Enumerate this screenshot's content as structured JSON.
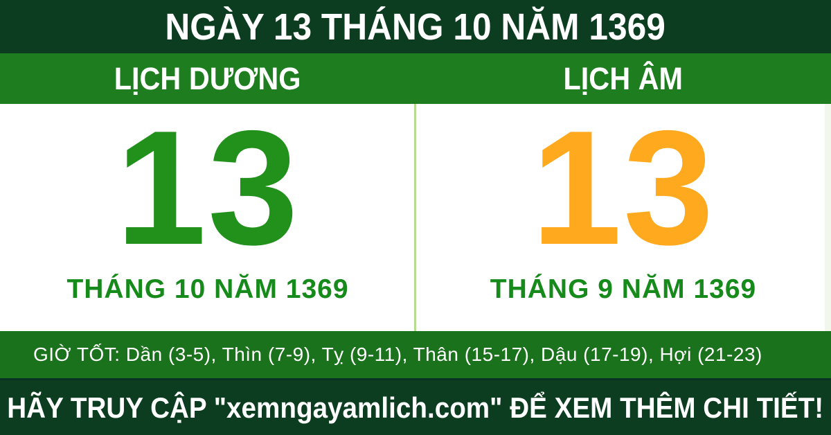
{
  "header": {
    "title": "NGÀY 13 THÁNG 10 NĂM 1369"
  },
  "calendars": {
    "solar": {
      "label": "LỊCH DƯƠNG",
      "day": "13",
      "month_year": "THÁNG 10 NĂM 1369"
    },
    "lunar": {
      "label": "LỊCH ÂM",
      "day": "13",
      "month_year": "THÁNG 9 NĂM 1369"
    }
  },
  "good_hours": {
    "text": "GIỜ TỐT: Dần (3-5), Thìn (7-9), Tỵ (9-11), Thân (15-17), Dậu (17-19), Hợi (21-23)"
  },
  "footer": {
    "text": "HÃY TRUY CẬP \"xemngayamlich.com\" ĐỂ XEM THÊM CHI TIẾT!",
    "website": "xemngayamlich.com"
  },
  "colors": {
    "dark_green_banner": "#0d3d20",
    "header_green": "#1e7d1f",
    "hours_bar_green": "#1b721c",
    "solar_day_green": "#21911c",
    "lunar_day_orange": "#ffa91e",
    "month_text_green": "#168a1a",
    "divider_light_green": "#b6dc90",
    "text_white": "#ffffff",
    "panel_background": "#ffffff"
  }
}
